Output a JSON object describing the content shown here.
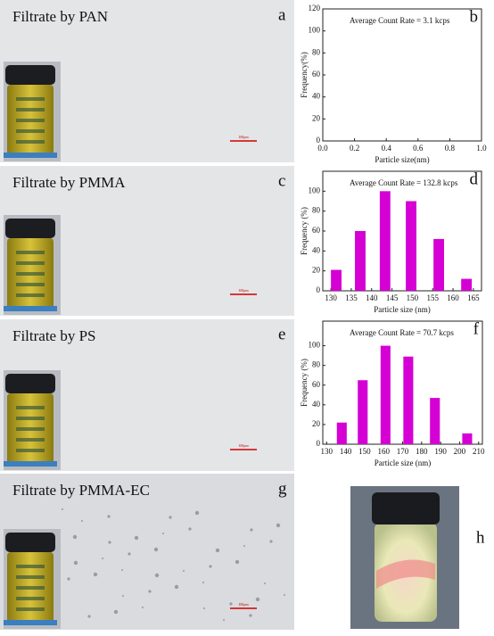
{
  "panels": [
    {
      "title": "Filtrate by PAN",
      "letter": "a",
      "scale": "100μm"
    },
    {
      "title": "Filtrate by PMMA",
      "letter": "c",
      "scale": "100μm"
    },
    {
      "title": "Filtrate by PS",
      "letter": "e",
      "scale": "100μm"
    },
    {
      "title": "Filtrate by PMMA-EC",
      "letter": "g",
      "scale": "100μm"
    }
  ],
  "photo": {
    "letter": "h"
  },
  "chart_data": [
    {
      "type": "bar",
      "letter": "b",
      "annotation": "Average Count Rate = 3.1 kcps",
      "x_label": "Particle size(nm)",
      "y_label": "Frequency(%)",
      "xlim": [
        0,
        1
      ],
      "xticks": [
        {
          "value": 0,
          "label": "0.0"
        },
        0.2,
        0.4,
        0.6,
        0.8,
        {
          "value": 1,
          "label": "1.0"
        }
      ],
      "ylim": [
        0,
        120
      ],
      "yticks": [
        0,
        20,
        40,
        60,
        80,
        100,
        120
      ]
    },
    {
      "type": "bar",
      "letter": "d",
      "annotation": "Average Count Rate = 132.8 kcps",
      "x_label": "Particle size (nm)",
      "y_label": "Frequency (%)",
      "xlim": [
        128,
        167
      ],
      "xticks": [
        130,
        135,
        140,
        145,
        150,
        155,
        160,
        165
      ],
      "ylim": [
        0,
        120
      ],
      "yticks": [
        0,
        20,
        40,
        60,
        80,
        100
      ],
      "color": "#d400d4",
      "x": [
        131.3,
        137.2,
        143.3,
        149.7,
        156.5,
        163.3
      ],
      "values": [
        21,
        60,
        100,
        90,
        52,
        12
      ]
    },
    {
      "type": "bar",
      "letter": "f",
      "annotation": "Average Count Rate = 70.7 kcps",
      "x_label": "Particle size (nm)",
      "y_label": "Frequency (%)",
      "xlim": [
        128,
        212
      ],
      "xticks": [
        130,
        140,
        150,
        160,
        170,
        180,
        190,
        200,
        210
      ],
      "ylim": [
        0,
        125
      ],
      "yticks": [
        0,
        20,
        40,
        60,
        80,
        100
      ],
      "color": "#d400d4",
      "x": [
        138,
        149,
        161,
        173,
        187,
        204
      ],
      "values": [
        22,
        65,
        100,
        89,
        47,
        11
      ]
    }
  ]
}
